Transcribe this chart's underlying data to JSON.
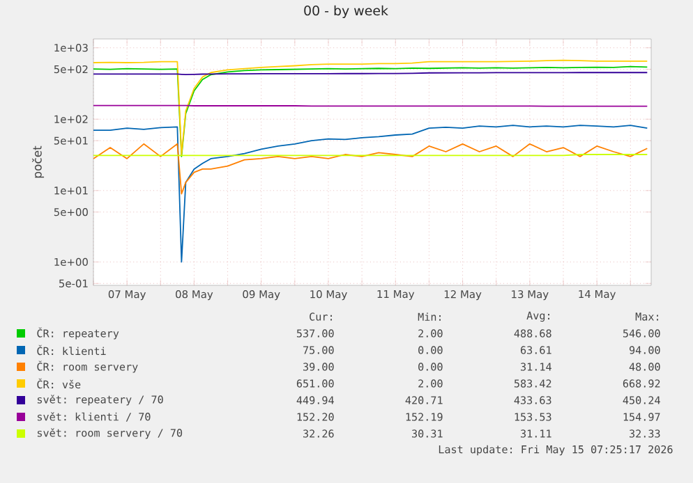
{
  "chart_data": {
    "type": "line",
    "title": "00 - by week",
    "ylabel": "počet",
    "x": [
      "2026-05-07T00:00",
      "2026-05-07T06:00",
      "2026-05-07T12:00",
      "2026-05-07T18:00",
      "2026-05-08T00:00",
      "2026-05-08T06:00",
      "2026-05-08T07:30",
      "2026-05-08T09:00",
      "2026-05-08T12:00",
      "2026-05-08T15:00",
      "2026-05-08T18:00",
      "2026-05-09T00:00",
      "2026-05-09T06:00",
      "2026-05-09T12:00",
      "2026-05-09T18:00",
      "2026-05-10T00:00",
      "2026-05-10T06:00",
      "2026-05-10T12:00",
      "2026-05-10T18:00",
      "2026-05-11T00:00",
      "2026-05-11T06:00",
      "2026-05-11T12:00",
      "2026-05-11T18:00",
      "2026-05-12T00:00",
      "2026-05-12T06:00",
      "2026-05-12T12:00",
      "2026-05-12T18:00",
      "2026-05-13T00:00",
      "2026-05-13T06:00",
      "2026-05-13T12:00",
      "2026-05-13T18:00",
      "2026-05-14T00:00",
      "2026-05-14T06:00",
      "2026-05-14T12:00",
      "2026-05-14T18:00",
      "2026-05-15T00:00",
      "2026-05-15T06:00"
    ],
    "series": [
      {
        "name": "ČR: repeatery",
        "color": "#00cc00",
        "values": [
          505,
          500,
          510,
          505,
          500,
          505,
          30,
          120,
          250,
          360,
          420,
          460,
          480,
          490,
          495,
          500,
          505,
          510,
          505,
          510,
          515,
          510,
          520,
          515,
          520,
          525,
          520,
          525,
          520,
          525,
          530,
          525,
          530,
          535,
          530,
          546,
          537
        ]
      },
      {
        "name": "ČR: klienti",
        "color": "#0066b3",
        "values": [
          70,
          70,
          75,
          72,
          76,
          78,
          1,
          13,
          20,
          24,
          28,
          30,
          33,
          38,
          42,
          45,
          50,
          53,
          52,
          55,
          57,
          60,
          62,
          75,
          77,
          75,
          80,
          78,
          82,
          78,
          80,
          78,
          82,
          80,
          78,
          82,
          75
        ]
      },
      {
        "name": "ČR: room servery",
        "color": "#ff8000",
        "values": [
          28,
          40,
          28,
          45,
          30,
          45,
          9,
          13,
          18,
          20,
          20,
          22,
          27,
          28,
          30,
          28,
          30,
          28,
          32,
          30,
          34,
          32,
          30,
          42,
          35,
          45,
          35,
          42,
          30,
          45,
          35,
          40,
          30,
          42,
          35,
          30,
          39
        ]
      },
      {
        "name": "ČR: vše",
        "color": "#ffcc00",
        "values": [
          620,
          625,
          620,
          625,
          640,
          640,
          32,
          130,
          270,
          390,
          450,
          490,
          510,
          530,
          545,
          560,
          580,
          590,
          590,
          590,
          600,
          600,
          610,
          640,
          640,
          640,
          640,
          640,
          645,
          650,
          660,
          669,
          660,
          650,
          650,
          650,
          651
        ]
      },
      {
        "name": "svět: repeatery / 70",
        "color": "#330099",
        "values": [
          430,
          430,
          430,
          430,
          430,
          430,
          425,
          421,
          425,
          428,
          430,
          432,
          432,
          433,
          433,
          434,
          434,
          434,
          435,
          435,
          436,
          436,
          438,
          445,
          446,
          447,
          447,
          448,
          448,
          448,
          449,
          449,
          450,
          450,
          450,
          450,
          450
        ]
      },
      {
        "name": "svět: klienti / 70",
        "color": "#990099",
        "values": [
          155,
          155,
          155,
          155,
          155,
          155,
          155,
          155,
          154,
          154,
          154,
          154,
          154,
          154,
          154,
          154,
          153,
          153,
          153,
          153,
          153,
          153,
          153,
          153,
          153,
          153,
          153,
          153,
          153,
          153,
          152,
          152,
          152,
          152,
          152,
          152,
          152
        ]
      },
      {
        "name": "svět: room servery / 70",
        "color": "#ccff00",
        "values": [
          31,
          31,
          31,
          31,
          31,
          31,
          31,
          31,
          31,
          31,
          31,
          31,
          31,
          31,
          31,
          31,
          31,
          31,
          31,
          31,
          31,
          31,
          31,
          31,
          31,
          31,
          31,
          31,
          31,
          31,
          31,
          31,
          32,
          32,
          32,
          32,
          32
        ]
      }
    ],
    "xlim": [
      "2026-05-07T00:00",
      "2026-05-15T07:25"
    ],
    "xticks": [
      {
        "value": "2026-05-07T00:00",
        "label": null
      },
      {
        "value": "2026-05-07T12:00",
        "label": "07 May"
      },
      {
        "value": "2026-05-08T00:00",
        "label": null
      },
      {
        "value": "2026-05-08T12:00",
        "label": "08 May"
      },
      {
        "value": "2026-05-09T00:00",
        "label": null
      },
      {
        "value": "2026-05-09T12:00",
        "label": "09 May"
      },
      {
        "value": "2026-05-10T00:00",
        "label": null
      },
      {
        "value": "2026-05-10T12:00",
        "label": "10 May"
      },
      {
        "value": "2026-05-11T00:00",
        "label": null
      },
      {
        "value": "2026-05-11T12:00",
        "label": "11 May"
      },
      {
        "value": "2026-05-12T00:00",
        "label": null
      },
      {
        "value": "2026-05-12T12:00",
        "label": "12 May"
      },
      {
        "value": "2026-05-13T00:00",
        "label": null
      },
      {
        "value": "2026-05-13T12:00",
        "label": "13 May"
      },
      {
        "value": "2026-05-14T00:00",
        "label": null
      },
      {
        "value": "2026-05-14T12:00",
        "label": "14 May"
      },
      {
        "value": "2026-05-15T00:00",
        "label": null
      }
    ],
    "ylim": [
      0.47,
      1330
    ],
    "yticks": [
      {
        "value": 0.5,
        "label": "5e-01"
      },
      {
        "value": 1,
        "label": "1e+00"
      },
      {
        "value": 5,
        "label": "5e+00"
      },
      {
        "value": 10,
        "label": "1e+01"
      },
      {
        "value": 50,
        "label": "5e+01"
      },
      {
        "value": 100,
        "label": "1e+02"
      },
      {
        "value": 500,
        "label": "5e+02"
      },
      {
        "value": 1000,
        "label": "1e+03"
      }
    ],
    "log": "y",
    "grid": true,
    "legend": "bottom",
    "annotations": [
      "Cur:",
      "Min:",
      "Avg:",
      "Max:",
      "537.00",
      "2.00",
      "488.68",
      "546.00",
      "75.00",
      "0.00",
      "63.61",
      "94.00",
      "39.00",
      "0.00",
      "31.14",
      "48.00",
      "651.00",
      "2.00",
      "583.42",
      "668.92",
      "449.94",
      "420.71",
      "433.63",
      "450.24",
      "152.20",
      "152.19",
      "153.53",
      "154.97",
      "32.26",
      "30.31",
      "31.11",
      "32.33",
      "Last update: Fri May 15 07:25:17 2026"
    ]
  }
}
